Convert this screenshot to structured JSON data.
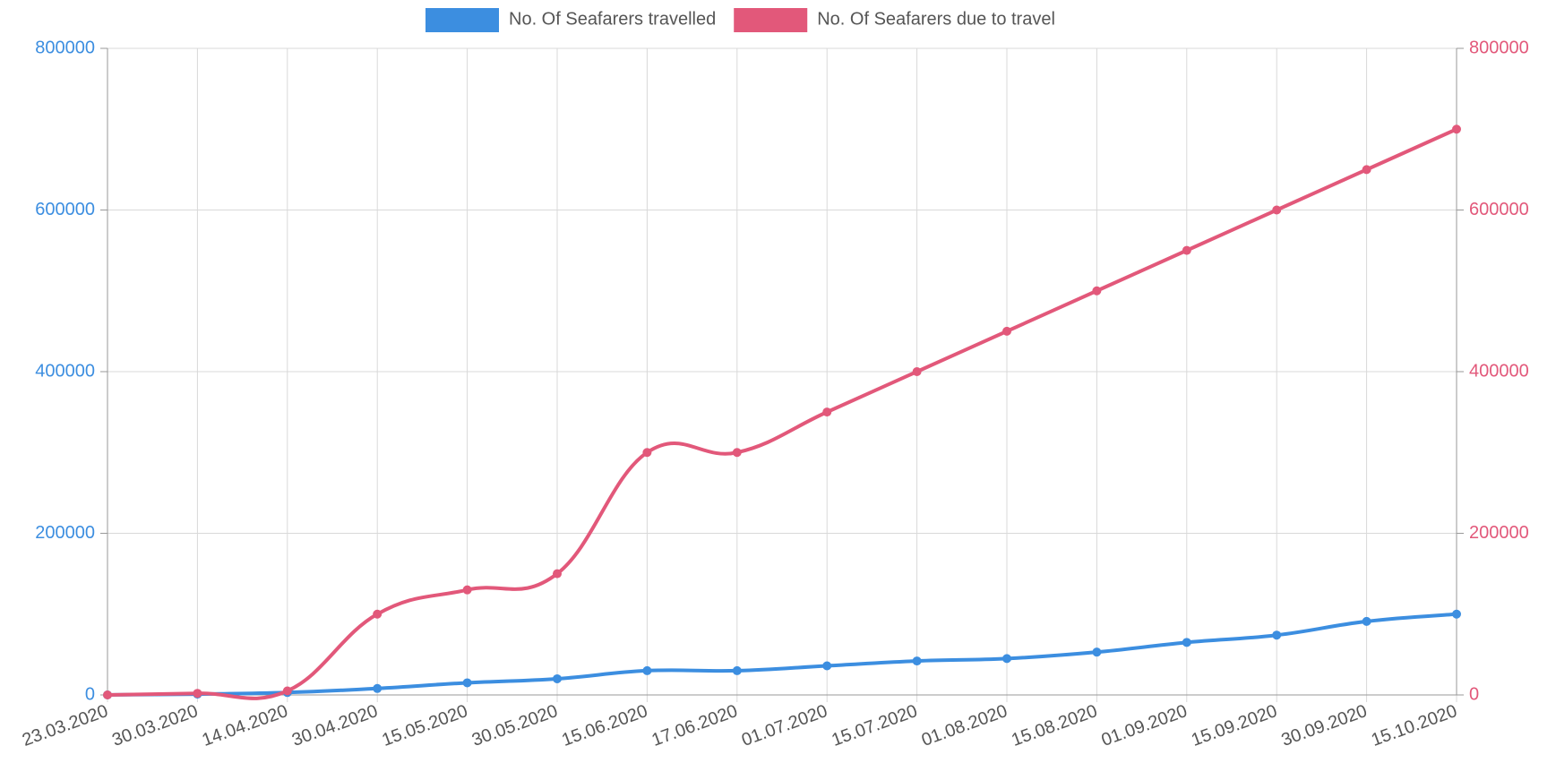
{
  "chart_data": {
    "type": "line",
    "categories": [
      "23.03.2020",
      "30.03.2020",
      "14.04.2020",
      "30.04.2020",
      "15.05.2020",
      "30.05.2020",
      "15.06.2020",
      "17.06.2020",
      "01.07.2020",
      "15.07.2020",
      "01.08.2020",
      "15.08.2020",
      "01.09.2020",
      "15.09.2020",
      "30.09.2020",
      "15.10.2020"
    ],
    "series": [
      {
        "name": "No. Of Seafarers travelled",
        "color": "#3c8ee0",
        "values": [
          0,
          1000,
          3000,
          8000,
          15000,
          20000,
          30000,
          30000,
          36000,
          42000,
          45000,
          53000,
          65000,
          74000,
          91000,
          100000
        ]
      },
      {
        "name": "No. Of Seafarers due to travel",
        "color": "#e2587a",
        "axis": "y2",
        "values": [
          0,
          2000,
          5000,
          100000,
          130000,
          150000,
          300000,
          300000,
          350000,
          400000,
          450000,
          500000,
          550000,
          600000,
          650000,
          700000
        ]
      }
    ],
    "ylim": [
      0,
      800000
    ],
    "yticks": [
      0,
      200000,
      400000,
      600000,
      800000
    ],
    "y2lim": [
      0,
      800000
    ],
    "y2ticks": [
      0,
      200000,
      400000,
      600000,
      800000
    ],
    "grid": true,
    "legend": "top"
  }
}
